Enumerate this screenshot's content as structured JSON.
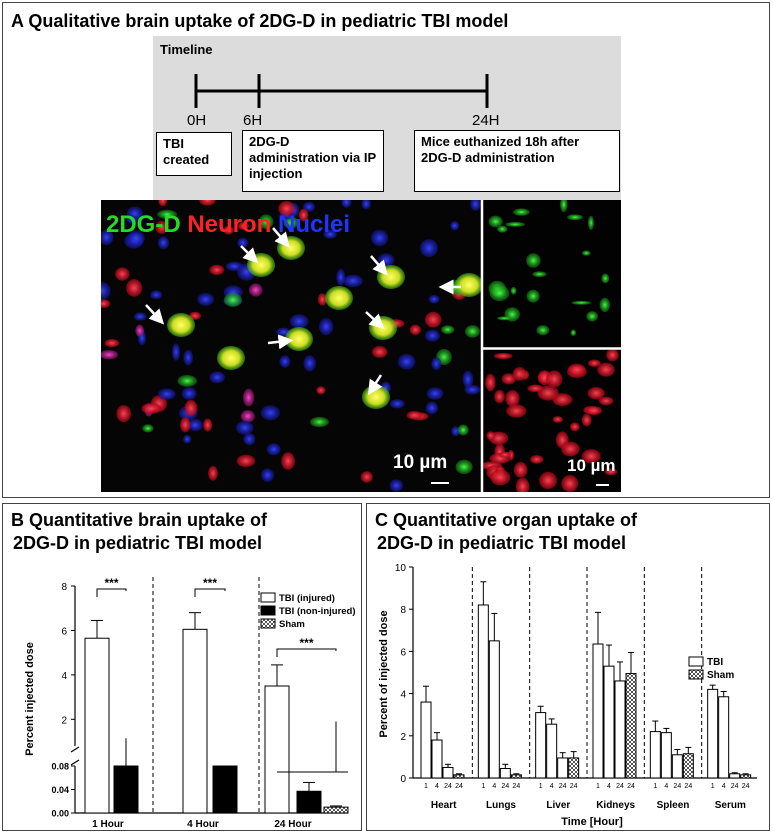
{
  "panel_a": {
    "title": "A Qualitative brain uptake of 2DG-D in pediatric TBI model",
    "timeline": {
      "heading": "Timeline",
      "ticks": [
        "0H",
        "6H",
        "24H"
      ],
      "boxes": [
        "TBI created",
        "2DG-D administration via IP injection",
        "Mice euthanized 18h after 2DG-D administration"
      ]
    },
    "micrograph": {
      "labels": [
        "2DG-D",
        "Neuron",
        "Nuclei"
      ],
      "label_colors": [
        "#22dd22",
        "#ff2222",
        "#2233ff"
      ],
      "scale_bar_main": "10 µm",
      "scale_bar_side": "10 µm"
    }
  },
  "panel_b": {
    "title_line1": "B Quantitative brain uptake of",
    "title_line2": "2DG-D in pediatric TBI model"
  },
  "panel_c": {
    "title_line1": "C Quantitative organ uptake of",
    "title_line2": "2DG-D in pediatric TBI model"
  },
  "chart_data": [
    {
      "type": "bar",
      "ylabel": "Percent injected dose",
      "categories": [
        "1 Hour",
        "4 Hour",
        "24 Hour"
      ],
      "axis_break": true,
      "y_upper_ticks": [
        "2",
        "4",
        "6",
        "8"
      ],
      "y_lower_ticks": [
        "0.00",
        "0.04",
        "0.08"
      ],
      "series": [
        {
          "name": "TBI (injured)",
          "values": [
            5.65,
            6.05,
            3.5
          ],
          "errors": [
            0.8,
            0.75,
            0.95
          ]
        },
        {
          "name": "TBI (non-injured)",
          "values": [
            0.55,
            0.35,
            0.037
          ],
          "errors": [
            0.15,
            0.1,
            0.015
          ]
        },
        {
          "name": "Sham",
          "values": [
            null,
            null,
            0.01
          ],
          "errors": [
            null,
            null,
            0.002
          ]
        }
      ],
      "significance": [
        "***",
        "***",
        "***"
      ],
      "legend": "top-right"
    },
    {
      "type": "bar",
      "ylabel": "Percent of injected dose",
      "xlabel": "Time [Hour]",
      "ylim": [
        0,
        10
      ],
      "yticks": [
        "0",
        "2",
        "4",
        "6",
        "8",
        "10"
      ],
      "groups": [
        {
          "name": "Heart",
          "bars": [
            {
              "t": "1",
              "s": "TBI",
              "v": 3.6,
              "e": 0.75
            },
            {
              "t": "4",
              "s": "TBI",
              "v": 1.8,
              "e": 0.35
            },
            {
              "t": "24",
              "s": "TBI",
              "v": 0.5,
              "e": 0.15
            },
            {
              "t": "24",
              "s": "Sham",
              "v": 0.15,
              "e": 0.05
            }
          ]
        },
        {
          "name": "Lungs",
          "bars": [
            {
              "t": "1",
              "s": "TBI",
              "v": 8.2,
              "e": 1.1
            },
            {
              "t": "4",
              "s": "TBI",
              "v": 6.5,
              "e": 1.3
            },
            {
              "t": "24",
              "s": "TBI",
              "v": 0.45,
              "e": 0.2
            },
            {
              "t": "24",
              "s": "Sham",
              "v": 0.15,
              "e": 0.05
            }
          ]
        },
        {
          "name": "Liver",
          "bars": [
            {
              "t": "1",
              "s": "TBI",
              "v": 3.1,
              "e": 0.3
            },
            {
              "t": "4",
              "s": "TBI",
              "v": 2.55,
              "e": 0.25
            },
            {
              "t": "24",
              "s": "TBI",
              "v": 0.95,
              "e": 0.25
            },
            {
              "t": "24",
              "s": "Sham",
              "v": 0.95,
              "e": 0.3
            }
          ]
        },
        {
          "name": "Kidneys",
          "bars": [
            {
              "t": "1",
              "s": "TBI",
              "v": 6.35,
              "e": 1.5
            },
            {
              "t": "4",
              "s": "TBI",
              "v": 5.3,
              "e": 1.0
            },
            {
              "t": "24",
              "s": "TBI",
              "v": 4.6,
              "e": 0.9
            },
            {
              "t": "24",
              "s": "Sham",
              "v": 4.95,
              "e": 1.0
            }
          ]
        },
        {
          "name": "Spleen",
          "bars": [
            {
              "t": "1",
              "s": "TBI",
              "v": 2.2,
              "e": 0.5
            },
            {
              "t": "4",
              "s": "TBI",
              "v": 2.15,
              "e": 0.2
            },
            {
              "t": "24",
              "s": "TBI",
              "v": 1.1,
              "e": 0.25
            },
            {
              "t": "24",
              "s": "Sham",
              "v": 1.15,
              "e": 0.3
            }
          ]
        },
        {
          "name": "Serum",
          "bars": [
            {
              "t": "1",
              "s": "TBI",
              "v": 4.2,
              "e": 0.2
            },
            {
              "t": "4",
              "s": "TBI",
              "v": 3.85,
              "e": 0.25
            },
            {
              "t": "24",
              "s": "TBI",
              "v": 0.2,
              "e": 0.05
            },
            {
              "t": "24",
              "s": "Sham",
              "v": 0.15,
              "e": 0.05
            }
          ]
        }
      ],
      "legend_entries": [
        "TBI",
        "Sham"
      ],
      "legend": "top-right"
    }
  ]
}
